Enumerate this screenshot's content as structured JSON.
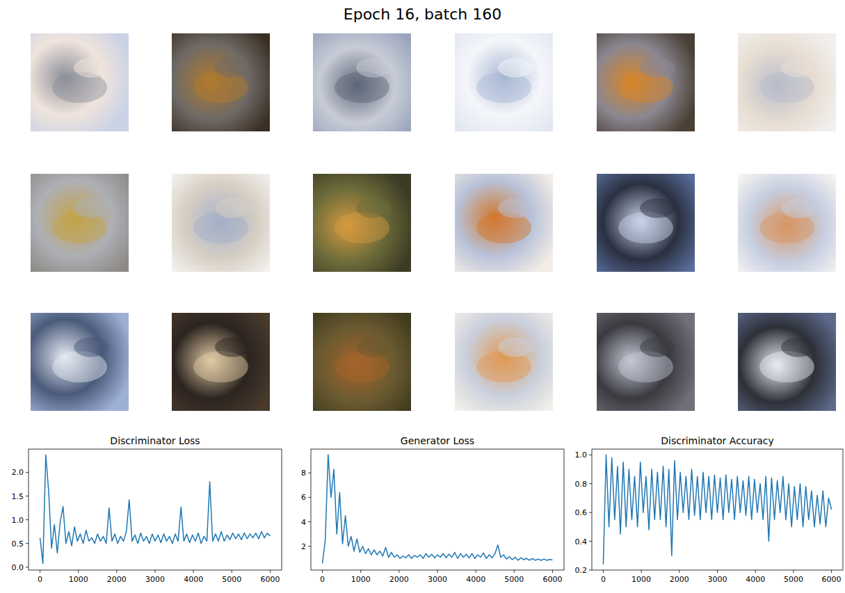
{
  "title": "Epoch 16, batch 160",
  "chart_data": [
    {
      "type": "line",
      "title": "Discriminator Loss",
      "color": "#1f77b4",
      "x": [
        0,
        75,
        150,
        225,
        300,
        375,
        450,
        525,
        600,
        675,
        750,
        825,
        900,
        975,
        1050,
        1125,
        1200,
        1275,
        1350,
        1425,
        1500,
        1575,
        1650,
        1725,
        1800,
        1875,
        1950,
        2025,
        2100,
        2175,
        2250,
        2325,
        2400,
        2475,
        2550,
        2625,
        2700,
        2775,
        2850,
        2925,
        3000,
        3075,
        3150,
        3225,
        3300,
        3375,
        3450,
        3525,
        3600,
        3675,
        3750,
        3825,
        3900,
        3975,
        4050,
        4125,
        4200,
        4275,
        4350,
        4425,
        4500,
        4575,
        4650,
        4725,
        4800,
        4875,
        4950,
        5025,
        5100,
        5175,
        5250,
        5325,
        5400,
        5475,
        5550,
        5625,
        5700,
        5775,
        5850,
        5925,
        6000
      ],
      "values": [
        0.62,
        0.08,
        2.37,
        1.6,
        0.4,
        0.9,
        0.3,
        0.95,
        1.28,
        0.5,
        0.75,
        0.45,
        0.85,
        0.55,
        0.7,
        0.5,
        0.78,
        0.55,
        0.62,
        0.5,
        0.7,
        0.55,
        0.65,
        0.5,
        1.25,
        0.55,
        0.7,
        0.5,
        0.65,
        0.55,
        0.75,
        1.42,
        0.55,
        0.68,
        0.5,
        0.72,
        0.55,
        0.65,
        0.5,
        0.7,
        0.55,
        0.68,
        0.52,
        0.7,
        0.55,
        0.65,
        0.5,
        0.7,
        0.55,
        1.27,
        0.55,
        0.7,
        0.52,
        0.68,
        0.55,
        0.72,
        0.5,
        0.65,
        0.55,
        1.8,
        0.55,
        0.7,
        0.55,
        0.75,
        0.55,
        0.68,
        0.58,
        0.72,
        0.6,
        0.7,
        0.58,
        0.72,
        0.6,
        0.7,
        0.62,
        0.72,
        0.6,
        0.75,
        0.62,
        0.72,
        0.66
      ],
      "xlim": [
        -300,
        6300
      ],
      "xticks": [
        0,
        1000,
        2000,
        3000,
        4000,
        5000,
        6000
      ],
      "ylim": [
        -0.06,
        2.49
      ],
      "yticks": [
        {
          "value": 0.0,
          "label": "0.0"
        },
        0.5,
        {
          "value": 1.0,
          "label": "1.0"
        },
        1.5,
        {
          "value": 2.0,
          "label": "2.0"
        }
      ],
      "grid": false
    },
    {
      "type": "line",
      "title": "Generator Loss",
      "color": "#1f77b4",
      "x": [
        0,
        75,
        150,
        225,
        300,
        375,
        450,
        525,
        600,
        675,
        750,
        825,
        900,
        975,
        1050,
        1125,
        1200,
        1275,
        1350,
        1425,
        1500,
        1575,
        1650,
        1725,
        1800,
        1875,
        1950,
        2025,
        2100,
        2175,
        2250,
        2325,
        2400,
        2475,
        2550,
        2625,
        2700,
        2775,
        2850,
        2925,
        3000,
        3075,
        3150,
        3225,
        3300,
        3375,
        3450,
        3525,
        3600,
        3675,
        3750,
        3825,
        3900,
        3975,
        4050,
        4125,
        4200,
        4275,
        4350,
        4425,
        4500,
        4575,
        4650,
        4725,
        4800,
        4875,
        4950,
        5025,
        5100,
        5175,
        5250,
        5325,
        5400,
        5475,
        5550,
        5625,
        5700,
        5775,
        5850,
        5925,
        6000
      ],
      "values": [
        0.6,
        2.5,
        9.5,
        6.0,
        8.3,
        3.0,
        6.4,
        2.2,
        4.5,
        2.0,
        2.8,
        1.6,
        2.6,
        1.5,
        2.0,
        1.4,
        1.8,
        1.3,
        1.7,
        1.3,
        1.6,
        1.2,
        1.9,
        1.1,
        1.5,
        1.1,
        1.3,
        1.0,
        1.2,
        1.05,
        1.3,
        1.0,
        1.25,
        1.1,
        1.3,
        1.0,
        1.4,
        1.1,
        1.35,
        1.05,
        1.3,
        1.1,
        1.4,
        1.05,
        1.35,
        1.1,
        1.5,
        1.0,
        1.4,
        1.1,
        1.35,
        1.05,
        1.4,
        1.0,
        1.3,
        1.1,
        1.45,
        1.0,
        1.3,
        1.05,
        1.4,
        2.1,
        1.1,
        1.3,
        0.95,
        1.15,
        0.9,
        1.1,
        0.85,
        1.05,
        0.9,
        1.0,
        0.85,
        1.0,
        0.85,
        0.95,
        0.85,
        0.95,
        0.85,
        0.92,
        0.88
      ],
      "xlim": [
        -300,
        6300
      ],
      "xticks": [
        0,
        1000,
        2000,
        3000,
        4000,
        5000,
        6000
      ],
      "ylim": [
        0.05,
        9.95
      ],
      "yticks": [
        2,
        4,
        6,
        8
      ],
      "grid": false
    },
    {
      "type": "line",
      "title": "Discriminator Accuracy",
      "color": "#1f77b4",
      "x": [
        0,
        75,
        150,
        225,
        300,
        375,
        450,
        525,
        600,
        675,
        750,
        825,
        900,
        975,
        1050,
        1125,
        1200,
        1275,
        1350,
        1425,
        1500,
        1575,
        1650,
        1725,
        1800,
        1875,
        1950,
        2025,
        2100,
        2175,
        2250,
        2325,
        2400,
        2475,
        2550,
        2625,
        2700,
        2775,
        2850,
        2925,
        3000,
        3075,
        3150,
        3225,
        3300,
        3375,
        3450,
        3525,
        3600,
        3675,
        3750,
        3825,
        3900,
        3975,
        4050,
        4125,
        4200,
        4275,
        4350,
        4425,
        4500,
        4575,
        4650,
        4725,
        4800,
        4875,
        4950,
        5025,
        5100,
        5175,
        5250,
        5325,
        5400,
        5475,
        5550,
        5625,
        5700,
        5775,
        5850,
        5925,
        6000
      ],
      "values": [
        0.24,
        1.0,
        0.5,
        0.98,
        0.55,
        0.92,
        0.45,
        0.95,
        0.5,
        0.9,
        0.55,
        0.85,
        0.5,
        0.95,
        0.6,
        0.85,
        0.48,
        0.9,
        0.55,
        0.88,
        0.55,
        0.92,
        0.5,
        0.9,
        0.3,
        0.96,
        0.55,
        0.88,
        0.6,
        0.85,
        0.55,
        0.9,
        0.58,
        0.85,
        0.55,
        0.88,
        0.6,
        0.85,
        0.55,
        0.86,
        0.6,
        0.84,
        0.55,
        0.86,
        0.6,
        0.83,
        0.55,
        0.85,
        0.6,
        0.82,
        0.58,
        0.85,
        0.55,
        0.83,
        0.6,
        0.8,
        0.55,
        0.85,
        0.4,
        0.84,
        0.55,
        0.82,
        0.6,
        0.85,
        0.55,
        0.8,
        0.5,
        0.78,
        0.55,
        0.8,
        0.5,
        0.78,
        0.55,
        0.75,
        0.5,
        0.72,
        0.52,
        0.75,
        0.5,
        0.7,
        0.62
      ],
      "xlim": [
        -300,
        6300
      ],
      "xticks": [
        0,
        1000,
        2000,
        3000,
        4000,
        5000,
        6000
      ],
      "ylim": [
        0.2,
        1.04
      ],
      "yticks": [
        0.2,
        0.4,
        0.6,
        0.8,
        {
          "value": 1.0,
          "label": "1.0"
        }
      ],
      "grid": false
    }
  ]
}
